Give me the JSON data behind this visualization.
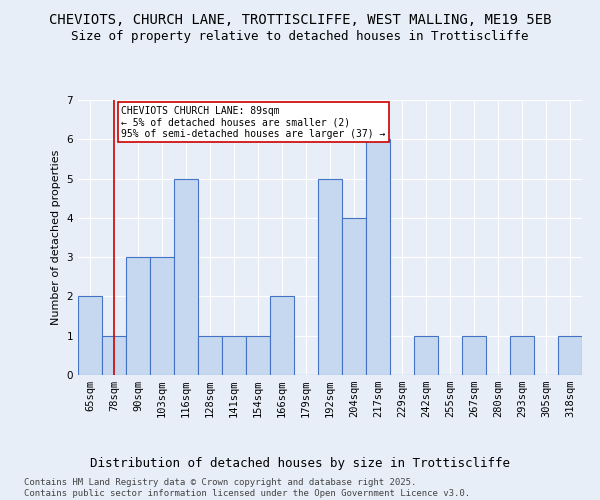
{
  "title1": "CHEVIOTS, CHURCH LANE, TROTTISCLIFFE, WEST MALLING, ME19 5EB",
  "title2": "Size of property relative to detached houses in Trottiscliffe",
  "xlabel": "Distribution of detached houses by size in Trottiscliffe",
  "ylabel": "Number of detached properties",
  "categories": [
    "65sqm",
    "78sqm",
    "90sqm",
    "103sqm",
    "116sqm",
    "128sqm",
    "141sqm",
    "154sqm",
    "166sqm",
    "179sqm",
    "192sqm",
    "204sqm",
    "217sqm",
    "229sqm",
    "242sqm",
    "255sqm",
    "267sqm",
    "280sqm",
    "293sqm",
    "305sqm",
    "318sqm"
  ],
  "values": [
    2,
    1,
    3,
    3,
    5,
    1,
    1,
    1,
    2,
    0,
    5,
    4,
    6,
    0,
    1,
    0,
    1,
    0,
    1,
    0,
    1
  ],
  "bar_color": "#c5d8f0",
  "bar_edge_color": "#4472c4",
  "annotation_box_text": "CHEVIOTS CHURCH LANE: 89sqm\n← 5% of detached houses are smaller (2)\n95% of semi-detached houses are larger (37) →",
  "vline_color": "#cc0000",
  "vline_x_index": 1,
  "ylim": [
    0,
    7
  ],
  "yticks": [
    0,
    1,
    2,
    3,
    4,
    5,
    6,
    7
  ],
  "footnote": "Contains HM Land Registry data © Crown copyright and database right 2025.\nContains public sector information licensed under the Open Government Licence v3.0.",
  "background_color": "#e8eef8",
  "plot_bg_color": "#e8eef8",
  "grid_color": "#ffffff",
  "title1_fontsize": 10,
  "title2_fontsize": 9,
  "xlabel_fontsize": 9,
  "ylabel_fontsize": 8,
  "tick_fontsize": 7.5,
  "footnote_fontsize": 6.5
}
